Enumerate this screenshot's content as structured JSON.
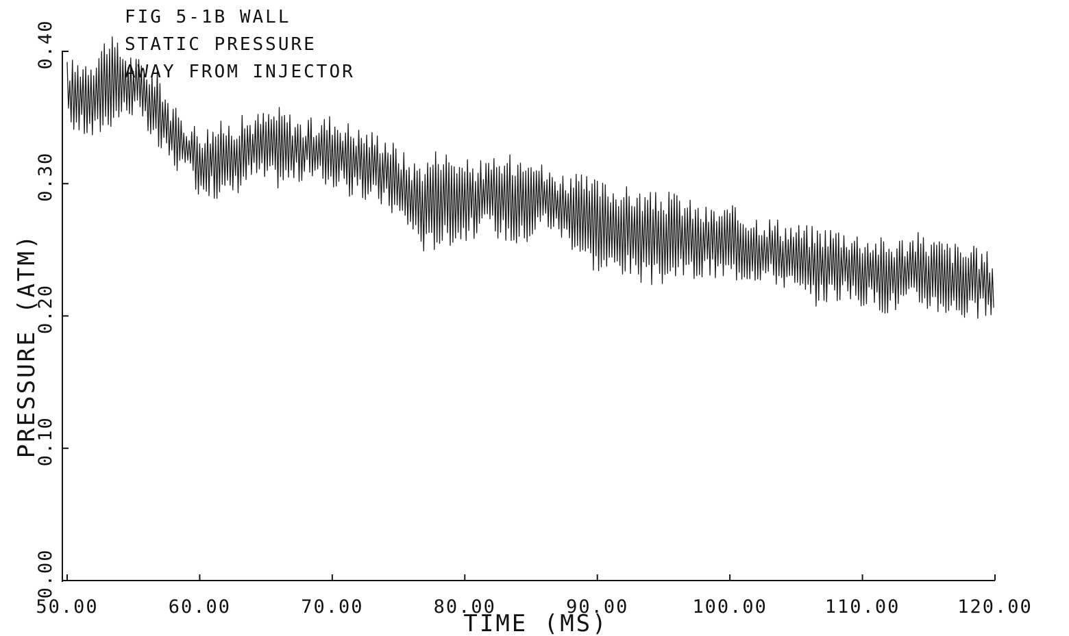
{
  "chart_data": {
    "type": "line",
    "title_lines": [
      "FIG 5-1B WALL",
      "STATIC PRESSURE",
      "AWAY FROM INJECTOR"
    ],
    "xlabel": "TIME (MS)",
    "ylabel": "PRESSURE (ATM)",
    "xlim": [
      50,
      120
    ],
    "ylim": [
      0,
      0.4
    ],
    "x_ticks": [
      "50.00",
      "60.00",
      "70.00",
      "80.00",
      "90.00",
      "100.00",
      "110.00",
      "120.00"
    ],
    "y_ticks": [
      "0.00",
      "0.10",
      "0.20",
      "0.30",
      "0.40"
    ],
    "grid": false,
    "legend": "none",
    "series": [
      {
        "envelope_x": [
          50,
          52,
          53,
          55,
          57,
          58,
          60,
          62,
          64,
          66,
          68,
          70,
          72,
          74,
          76,
          77,
          78,
          80,
          82,
          84,
          85,
          86,
          88,
          90,
          92,
          94,
          96,
          98,
          100,
          102,
          104,
          106,
          108,
          110,
          112,
          114,
          116,
          118,
          119.9
        ],
        "envelope_high": [
          0.385,
          0.39,
          0.405,
          0.39,
          0.375,
          0.35,
          0.335,
          0.34,
          0.345,
          0.35,
          0.34,
          0.345,
          0.335,
          0.33,
          0.31,
          0.31,
          0.32,
          0.31,
          0.31,
          0.315,
          0.32,
          0.305,
          0.3,
          0.295,
          0.29,
          0.285,
          0.285,
          0.275,
          0.275,
          0.27,
          0.265,
          0.26,
          0.26,
          0.255,
          0.25,
          0.255,
          0.25,
          0.245,
          0.24
        ],
        "envelope_low": [
          0.35,
          0.34,
          0.35,
          0.36,
          0.33,
          0.32,
          0.3,
          0.295,
          0.31,
          0.305,
          0.31,
          0.305,
          0.295,
          0.29,
          0.27,
          0.255,
          0.26,
          0.265,
          0.27,
          0.26,
          0.265,
          0.275,
          0.26,
          0.24,
          0.24,
          0.23,
          0.235,
          0.235,
          0.235,
          0.235,
          0.23,
          0.215,
          0.22,
          0.215,
          0.21,
          0.215,
          0.21,
          0.205,
          0.205
        ]
      }
    ]
  }
}
